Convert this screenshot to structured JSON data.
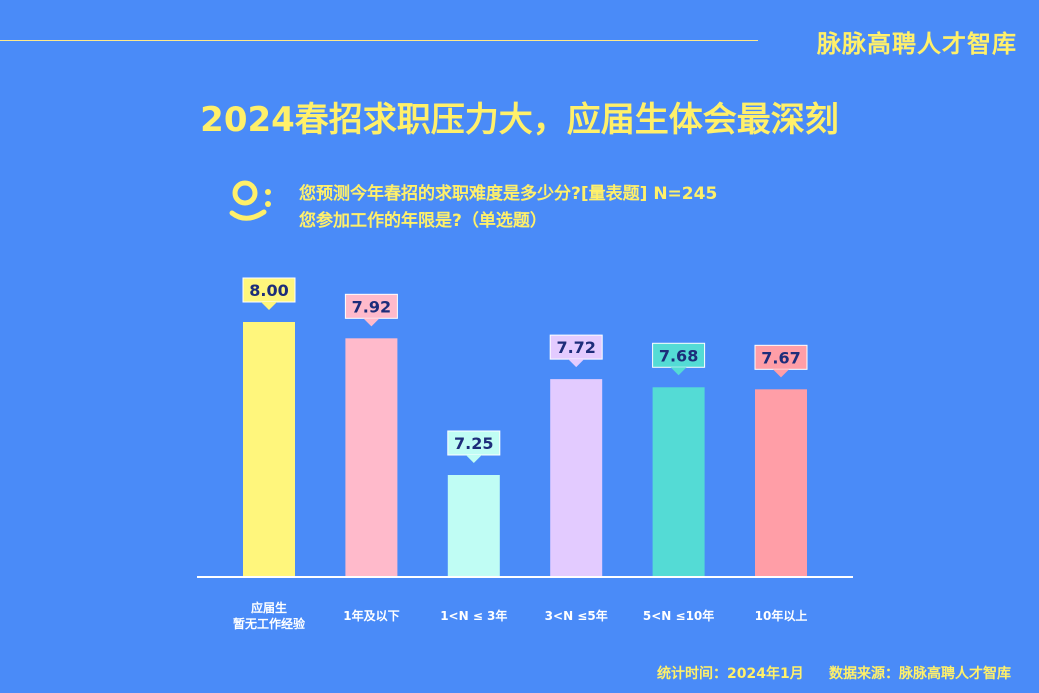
{
  "header": {
    "brand": "脉脉高聘人才智库",
    "title": "2024春招求职压力大，应届生体会最深刻"
  },
  "question": {
    "line1": "您预测今年春招的求职难度是多少分?[量表题] N=245",
    "line2": "您参加工作的年限是?（单选题）",
    "icon": "q-icon"
  },
  "chart_data": {
    "type": "bar",
    "categories": [
      [
        "应届生",
        "暂无工作经验"
      ],
      [
        "1年及以下"
      ],
      [
        "1<N ≤ 3年"
      ],
      [
        "3<N ≤5年"
      ],
      [
        "5<N ≤10年"
      ],
      [
        "10年以上"
      ]
    ],
    "values": [
      8.0,
      7.92,
      7.25,
      7.72,
      7.68,
      7.67
    ],
    "value_labels": [
      "8.00",
      "7.92",
      "7.25",
      "7.72",
      "7.68",
      "7.67"
    ],
    "colors": [
      "#fff67c",
      "#ffbacb",
      "#c0fdf4",
      "#e3cbff",
      "#54dbd5",
      "#ff9ea7"
    ],
    "label_box_colors": [
      "#fff67c",
      "#ffbacb",
      "#c0fdf4",
      "#e3cbff",
      "#54dbd5",
      "#ff9ea7"
    ],
    "grid": false,
    "legend": "none"
  },
  "footer": {
    "time": "统计时间：2024年1月",
    "source": "数据来源：脉脉高聘人才智库"
  }
}
